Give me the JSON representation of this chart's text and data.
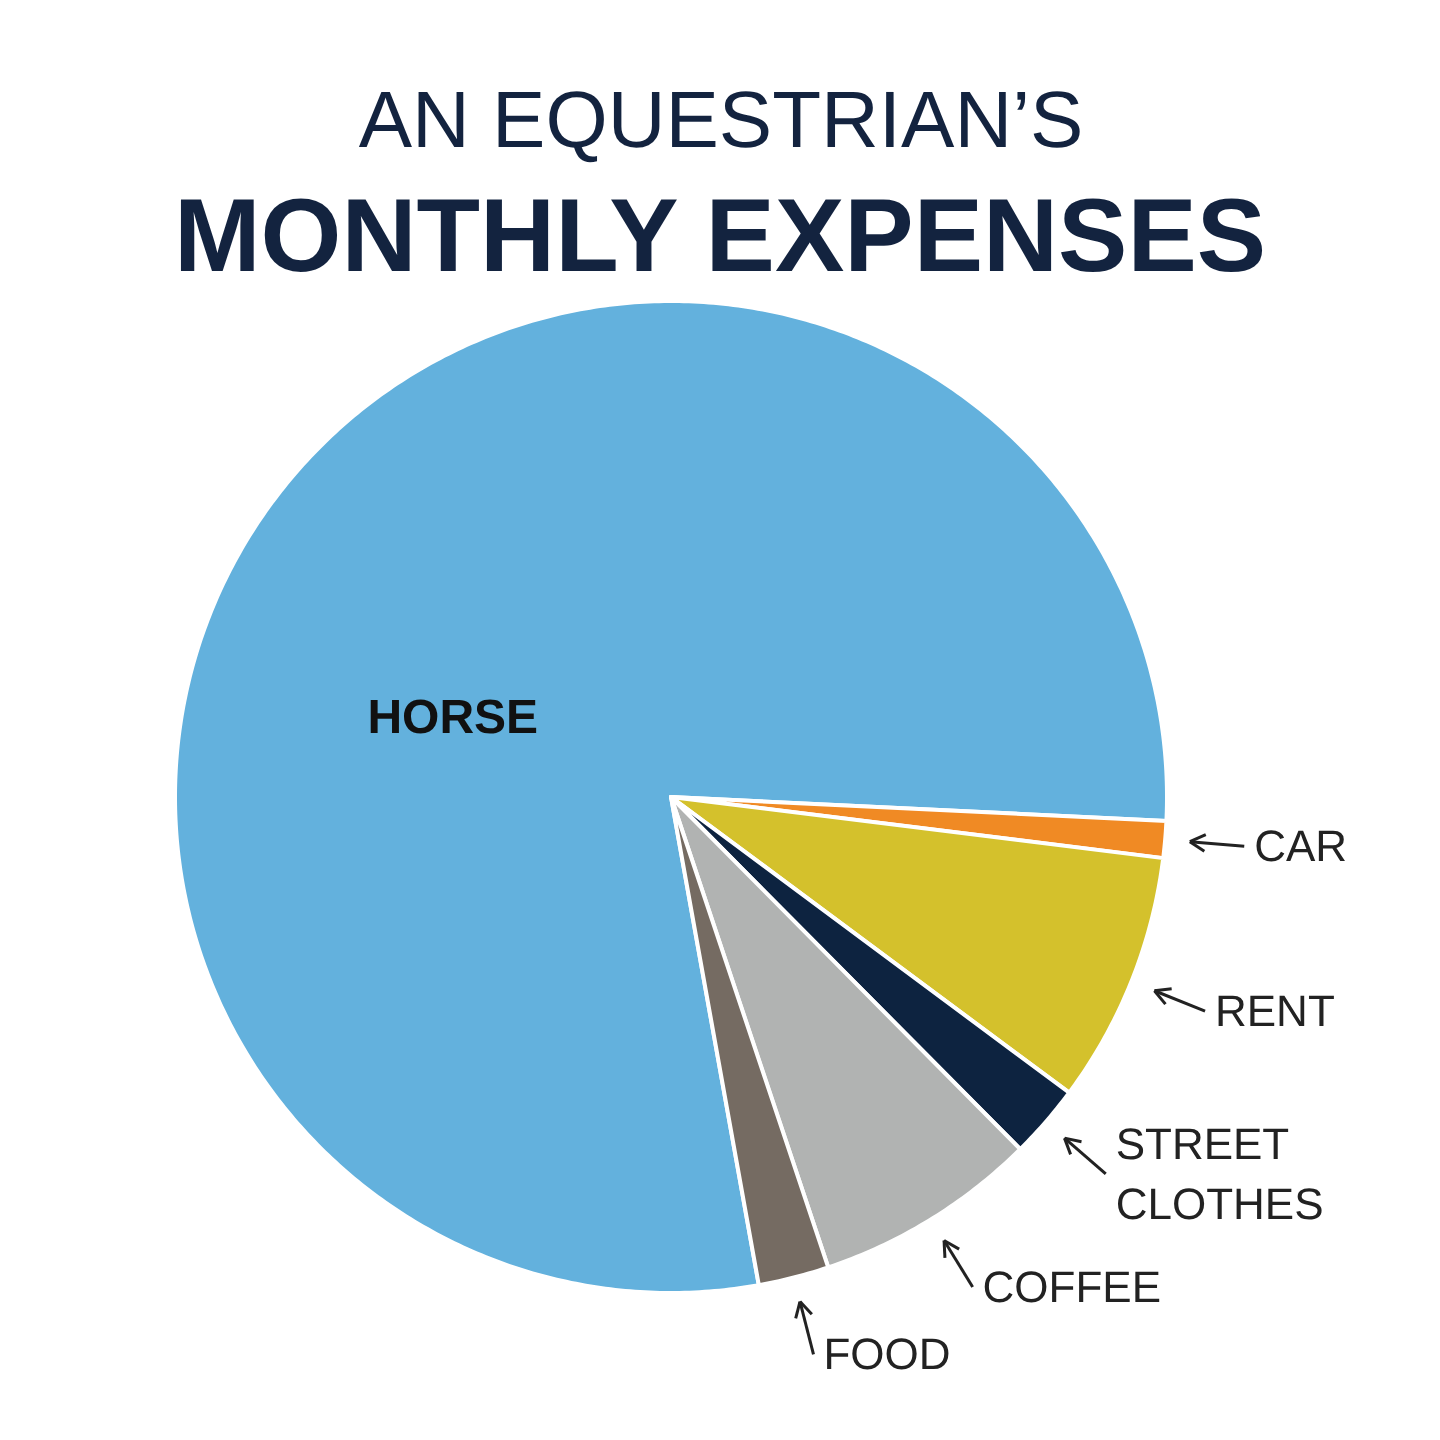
{
  "chart_data": {
    "type": "pie",
    "title": "AN EQUESTRIAN’S",
    "subtitle": "MONTHLY EXPENSES",
    "categories": [
      "HORSE",
      "CAR",
      "RENT",
      "STREET CLOTHES",
      "COFFEE",
      "FOOD"
    ],
    "values": [
      78.6,
      1.2,
      8.2,
      2.4,
      7.3,
      2.3
    ],
    "colors": [
      "#63b1dd",
      "#f08a24",
      "#d4c12c",
      "#0d2340",
      "#b1b3b2",
      "#756b62"
    ]
  }
}
